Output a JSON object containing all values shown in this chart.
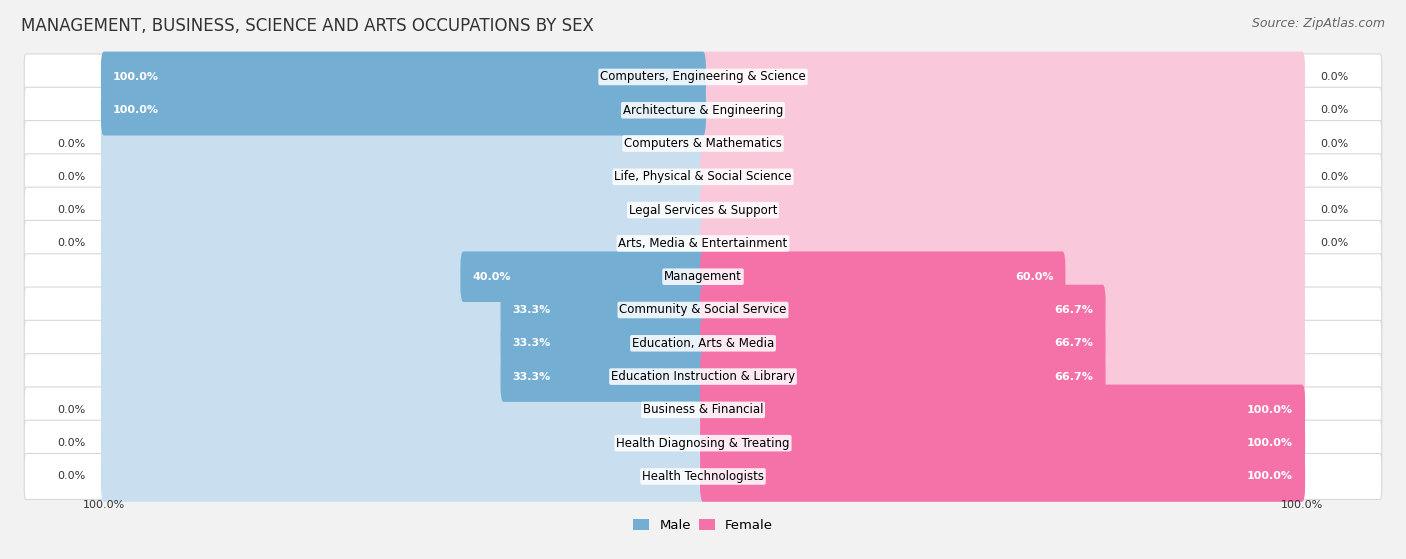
{
  "title": "MANAGEMENT, BUSINESS, SCIENCE AND ARTS OCCUPATIONS BY SEX",
  "source": "Source: ZipAtlas.com",
  "categories": [
    "Computers, Engineering & Science",
    "Architecture & Engineering",
    "Computers & Mathematics",
    "Life, Physical & Social Science",
    "Legal Services & Support",
    "Arts, Media & Entertainment",
    "Management",
    "Community & Social Service",
    "Education, Arts & Media",
    "Education Instruction & Library",
    "Business & Financial",
    "Health Diagnosing & Treating",
    "Health Technologists"
  ],
  "male_values": [
    100.0,
    100.0,
    0.0,
    0.0,
    0.0,
    0.0,
    40.0,
    33.3,
    33.3,
    33.3,
    0.0,
    0.0,
    0.0
  ],
  "female_values": [
    0.0,
    0.0,
    0.0,
    0.0,
    0.0,
    0.0,
    60.0,
    66.7,
    66.7,
    66.7,
    100.0,
    100.0,
    100.0
  ],
  "male_color": "#74afd3",
  "male_color_light": "#c9dff0",
  "female_color": "#f472a8",
  "female_color_light": "#f9c9db",
  "bg_color": "#f2f2f2",
  "row_color": "#ffffff",
  "row_border": "#d8d8d8",
  "text_dark": "#333333",
  "text_mid": "#666666",
  "legend_male": "Male",
  "legend_female": "Female",
  "title_fontsize": 12,
  "source_fontsize": 9,
  "cat_fontsize": 8.5,
  "val_fontsize": 8.0
}
